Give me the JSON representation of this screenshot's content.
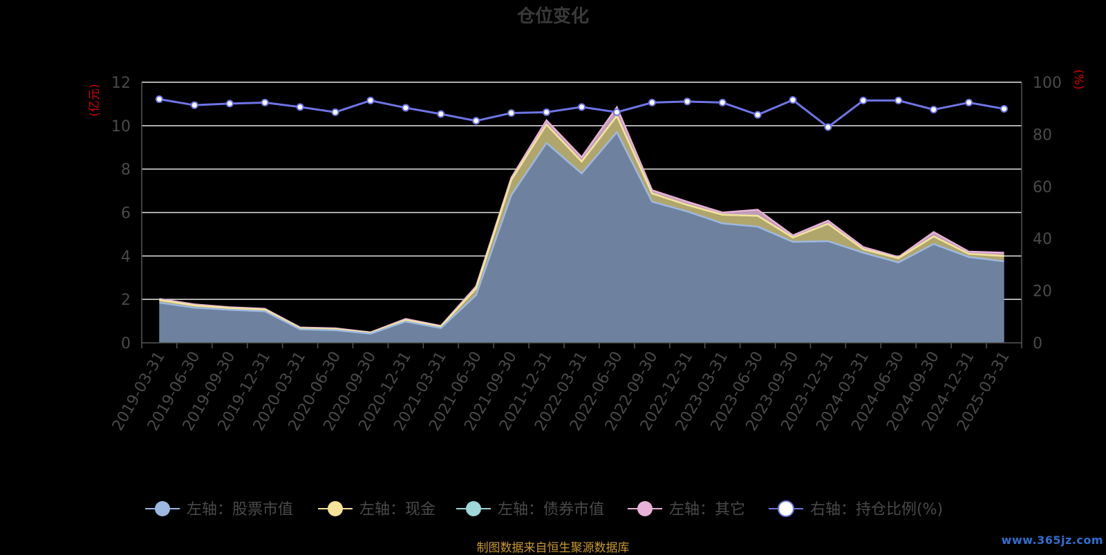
{
  "chart_data": {
    "type": "area",
    "title": "仓位变化",
    "left_axis_unit": "(亿元)",
    "right_axis_unit": "(%)",
    "left_ylim": [
      0,
      12
    ],
    "left_ticks": [
      0,
      2,
      4,
      6,
      8,
      10,
      12
    ],
    "right_ylim": [
      0,
      100
    ],
    "right_ticks": [
      0,
      20,
      40,
      60,
      80,
      100
    ],
    "grid": true,
    "legend_placement": "bottom",
    "categories": [
      "2019-03-31",
      "2019-06-30",
      "2019-09-30",
      "2019-12-31",
      "2020-03-31",
      "2020-06-30",
      "2020-09-30",
      "2020-12-31",
      "2021-03-31",
      "2021-06-30",
      "2021-09-30",
      "2021-12-31",
      "2022-03-31",
      "2022-06-30",
      "2022-09-30",
      "2022-12-31",
      "2023-03-31",
      "2023-06-30",
      "2023-09-30",
      "2023-12-31",
      "2024-03-31",
      "2024-06-30",
      "2024-09-30",
      "2024-12-31",
      "2025-03-31"
    ],
    "series": [
      {
        "name": "左轴：股票市值",
        "axis": "left",
        "stack": true,
        "color": "#9db8e0",
        "values": [
          1.85,
          1.62,
          1.52,
          1.45,
          0.62,
          0.58,
          0.42,
          0.98,
          0.68,
          2.2,
          6.8,
          9.2,
          7.8,
          9.7,
          6.5,
          6.05,
          5.5,
          5.35,
          4.65,
          4.68,
          4.15,
          3.7,
          4.55,
          3.95,
          3.75
        ]
      },
      {
        "name": "左轴：现金",
        "axis": "left",
        "stack": true,
        "color": "#f5e49a",
        "values": [
          0.12,
          0.1,
          0.08,
          0.08,
          0.05,
          0.05,
          0.04,
          0.07,
          0.07,
          0.3,
          0.7,
          0.85,
          0.55,
          0.75,
          0.38,
          0.3,
          0.4,
          0.5,
          0.2,
          0.8,
          0.16,
          0.2,
          0.35,
          0.15,
          0.25
        ]
      },
      {
        "name": "左轴：债券市值",
        "axis": "left",
        "stack": true,
        "color": "#9ed8d8",
        "values": [
          0,
          0,
          0,
          0,
          0,
          0,
          0,
          0,
          0,
          0,
          0,
          0,
          0,
          0,
          0,
          0,
          0,
          0,
          0,
          0,
          0,
          0,
          0,
          0,
          0
        ]
      },
      {
        "name": "左轴：其它",
        "axis": "left",
        "stack": true,
        "color": "#e8b2d8",
        "values": [
          0.05,
          0.05,
          0.04,
          0.04,
          0.04,
          0.04,
          0.02,
          0.05,
          0.03,
          0.1,
          0.1,
          0.2,
          0.2,
          0.4,
          0.15,
          0.15,
          0.1,
          0.28,
          0.1,
          0.15,
          0.1,
          0.05,
          0.2,
          0.1,
          0.15
        ]
      },
      {
        "name": "右轴：持仓比例(%)",
        "axis": "right",
        "type": "line",
        "color": "#6f75e6",
        "values": [
          93.5,
          91.2,
          91.8,
          92.2,
          90.5,
          88.5,
          93,
          90.2,
          87.8,
          85.2,
          88.2,
          88.5,
          90.5,
          88.5,
          92.2,
          92.6,
          92.2,
          87.5,
          93.2,
          82.8,
          93,
          93,
          89.5,
          92.2,
          89.8
        ]
      }
    ]
  },
  "source_text": "制图数据来自恒生聚源数据库",
  "watermark": "www.365jz.com"
}
